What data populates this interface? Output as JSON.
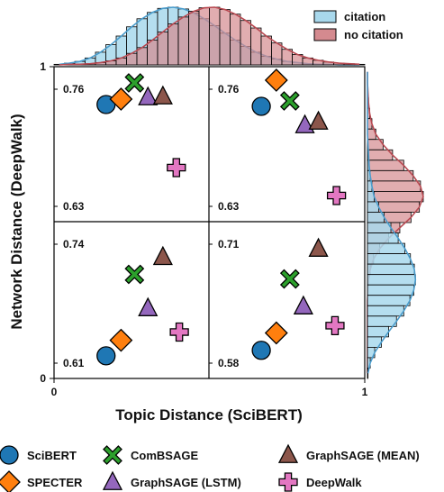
{
  "chart_data": {
    "type": "scatter",
    "xlabel": "Topic Distance (SciBERT)",
    "ylabel": "Network Distance (DeepWalk)",
    "x_ticks": [
      "0",
      "1"
    ],
    "y_ticks": [
      "0",
      "1"
    ],
    "distribution_legend": [
      "citation",
      "no citation"
    ],
    "distribution_colors": {
      "citation": "#a8d8ec",
      "no citation": "#d48a8f"
    },
    "top_hist": {
      "bins": 30,
      "citation": [
        0.01,
        0.03,
        0.06,
        0.12,
        0.22,
        0.35,
        0.5,
        0.66,
        0.8,
        0.91,
        0.98,
        1.0,
        0.97,
        0.9,
        0.8,
        0.68,
        0.55,
        0.43,
        0.32,
        0.22,
        0.15,
        0.1,
        0.06,
        0.04,
        0.02,
        0.01,
        0.01,
        0.0,
        0.0,
        0.0
      ],
      "no_citation": [
        0.0,
        0.01,
        0.01,
        0.02,
        0.04,
        0.07,
        0.12,
        0.2,
        0.3,
        0.43,
        0.57,
        0.71,
        0.83,
        0.93,
        0.99,
        1.0,
        0.96,
        0.88,
        0.77,
        0.64,
        0.5,
        0.38,
        0.27,
        0.18,
        0.12,
        0.08,
        0.05,
        0.03,
        0.02,
        0.01
      ]
    },
    "right_hist": {
      "bins": 30,
      "citation": [
        0.0,
        0.0,
        0.0,
        0.0,
        0.0,
        0.0,
        0.0,
        0.01,
        0.02,
        0.03,
        0.05,
        0.08,
        0.12,
        0.2,
        0.3,
        0.42,
        0.55,
        0.67,
        0.77,
        0.84,
        0.86,
        0.83,
        0.76,
        0.65,
        0.52,
        0.38,
        0.25,
        0.13,
        0.05,
        0.01
      ],
      "no_citation": [
        0.0,
        0.0,
        0.01,
        0.02,
        0.04,
        0.08,
        0.15,
        0.28,
        0.45,
        0.65,
        0.82,
        0.95,
        1.0,
        0.93,
        0.78,
        0.58,
        0.38,
        0.22,
        0.11,
        0.05,
        0.02,
        0.01,
        0.0,
        0.0,
        0.0,
        0.0,
        0.0,
        0.0,
        0.0,
        0.0
      ]
    },
    "panels": [
      {
        "id": "top-left",
        "ymin_label": "0.63",
        "ymax_label": "0.76",
        "ymin": 0.63,
        "ymax": 0.76,
        "xmin": 0.0,
        "xmax": 1.0,
        "points": [
          {
            "series": "SciBERT",
            "x": 0.33,
            "y": 0.743
          },
          {
            "series": "SPECTER",
            "x": 0.43,
            "y": 0.749
          },
          {
            "series": "ComBSAGE",
            "x": 0.52,
            "y": 0.767
          },
          {
            "series": "GraphSAGE (LSTM)",
            "x": 0.61,
            "y": 0.751
          },
          {
            "series": "GraphSAGE (MEAN)",
            "x": 0.71,
            "y": 0.752
          },
          {
            "series": "DeepWalk",
            "x": 0.8,
            "y": 0.673
          }
        ]
      },
      {
        "id": "top-right",
        "ymin_label": "0.63",
        "ymax_label": "0.76",
        "ymin": 0.63,
        "ymax": 0.76,
        "xmin": 0.0,
        "xmax": 1.0,
        "points": [
          {
            "series": "SciBERT",
            "x": 0.33,
            "y": 0.741
          },
          {
            "series": "SPECTER",
            "x": 0.43,
            "y": 0.77
          },
          {
            "series": "ComBSAGE",
            "x": 0.52,
            "y": 0.747
          },
          {
            "series": "GraphSAGE (LSTM)",
            "x": 0.62,
            "y": 0.72
          },
          {
            "series": "GraphSAGE (MEAN)",
            "x": 0.71,
            "y": 0.724
          },
          {
            "series": "DeepWalk",
            "x": 0.83,
            "y": 0.642
          }
        ]
      },
      {
        "id": "bottom-left",
        "ymin_label": "0.61",
        "ymax_label": "0.74",
        "ymin": 0.61,
        "ymax": 0.74,
        "xmin": 0.0,
        "xmax": 1.0,
        "points": [
          {
            "series": "SciBERT",
            "x": 0.33,
            "y": 0.618
          },
          {
            "series": "SPECTER",
            "x": 0.43,
            "y": 0.635
          },
          {
            "series": "ComBSAGE",
            "x": 0.52,
            "y": 0.707
          },
          {
            "series": "GraphSAGE (LSTM)",
            "x": 0.61,
            "y": 0.67
          },
          {
            "series": "GraphSAGE (MEAN)",
            "x": 0.71,
            "y": 0.726
          },
          {
            "series": "DeepWalk",
            "x": 0.82,
            "y": 0.644
          }
        ]
      },
      {
        "id": "bottom-right",
        "ymin_label": "0.58",
        "ymax_label": "0.71",
        "ymin": 0.58,
        "ymax": 0.71,
        "xmin": 0.0,
        "xmax": 1.0,
        "points": [
          {
            "series": "SciBERT",
            "x": 0.33,
            "y": 0.594
          },
          {
            "series": "SPECTER",
            "x": 0.43,
            "y": 0.613
          },
          {
            "series": "ComBSAGE",
            "x": 0.52,
            "y": 0.672
          },
          {
            "series": "GraphSAGE (LSTM)",
            "x": 0.61,
            "y": 0.642
          },
          {
            "series": "GraphSAGE (MEAN)",
            "x": 0.71,
            "y": 0.705
          },
          {
            "series": "DeepWalk",
            "x": 0.82,
            "y": 0.621
          }
        ]
      }
    ],
    "series": [
      {
        "name": "SciBERT",
        "marker": "circle",
        "color": "#1f77b4"
      },
      {
        "name": "SPECTER",
        "marker": "diamond",
        "color": "#ff7f0e"
      },
      {
        "name": "ComBSAGE",
        "marker": "x",
        "color": "#2ca02c"
      },
      {
        "name": "GraphSAGE (LSTM)",
        "marker": "triangle",
        "color": "#9467bd"
      },
      {
        "name": "GraphSAGE (MEAN)",
        "marker": "triangle",
        "color": "#8c564b"
      },
      {
        "name": "DeepWalk",
        "marker": "plus",
        "color": "#e377c2"
      }
    ]
  }
}
